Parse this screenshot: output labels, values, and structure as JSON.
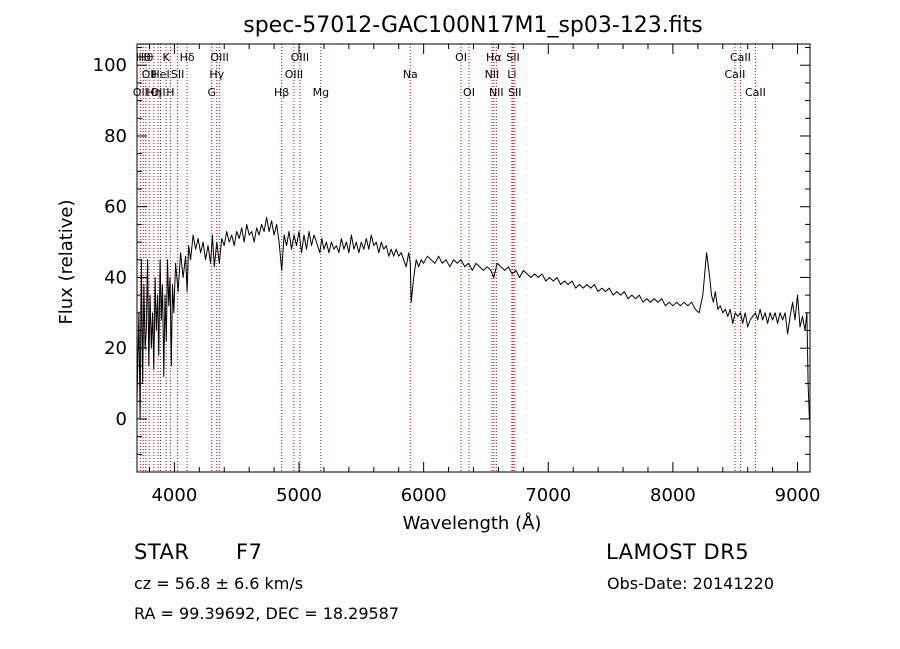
{
  "chart_data": {
    "type": "line",
    "title": "spec-57012-GAC100N17M1_sp03-123.fits",
    "xlabel": "Wavelength (Å)",
    "ylabel": "Flux (relative)",
    "xlim": [
      3700,
      9100
    ],
    "ylim": [
      -15,
      106
    ],
    "xticks": [
      4000,
      5000,
      6000,
      7000,
      8000,
      9000
    ],
    "xtick_labels": [
      "4000",
      "5000",
      "6000",
      "7000",
      "8000",
      "9000"
    ],
    "yticks": [
      0,
      20,
      40,
      60,
      80,
      100
    ],
    "ytick_labels": [
      "0",
      "20",
      "40",
      "60",
      "80",
      "100"
    ],
    "grid": false,
    "line_color": "#000000",
    "marker_color": "#c00000",
    "series": [
      {
        "x": [
          3700,
          3715,
          3725,
          3735,
          3745,
          3755,
          3765,
          3775,
          3785,
          3795,
          3805,
          3815,
          3825,
          3835,
          3845,
          3855,
          3865,
          3875,
          3885,
          3895,
          3905,
          3915,
          3925,
          3935,
          3945,
          3955,
          3965,
          3975,
          3985,
          3995,
          4010,
          4030,
          4050,
          4070,
          4090,
          4102,
          4115,
          4130,
          4150,
          4170,
          4190,
          4210,
          4230,
          4250,
          4270,
          4290,
          4305,
          4320,
          4340,
          4360,
          4380,
          4400,
          4420,
          4440,
          4460,
          4480,
          4500,
          4520,
          4540,
          4560,
          4580,
          4600,
          4620,
          4640,
          4660,
          4680,
          4700,
          4720,
          4740,
          4760,
          4780,
          4800,
          4820,
          4840,
          4861,
          4880,
          4900,
          4920,
          4940,
          4960,
          4980,
          5000,
          5020,
          5040,
          5060,
          5080,
          5100,
          5120,
          5140,
          5167,
          5183,
          5200,
          5220,
          5240,
          5260,
          5280,
          5300,
          5320,
          5340,
          5360,
          5380,
          5400,
          5420,
          5440,
          5460,
          5480,
          5500,
          5520,
          5540,
          5560,
          5580,
          5600,
          5620,
          5640,
          5660,
          5680,
          5700,
          5720,
          5740,
          5760,
          5780,
          5800,
          5820,
          5840,
          5860,
          5880,
          5893,
          5900,
          5920,
          5940,
          5960,
          5980,
          6000,
          6030,
          6060,
          6090,
          6120,
          6150,
          6180,
          6210,
          6240,
          6270,
          6300,
          6330,
          6360,
          6390,
          6420,
          6450,
          6480,
          6510,
          6540,
          6563,
          6590,
          6620,
          6650,
          6680,
          6710,
          6740,
          6770,
          6800,
          6830,
          6860,
          6890,
          6920,
          6950,
          6980,
          7010,
          7040,
          7070,
          7100,
          7130,
          7160,
          7190,
          7220,
          7250,
          7280,
          7310,
          7340,
          7370,
          7400,
          7430,
          7460,
          7490,
          7520,
          7550,
          7580,
          7610,
          7640,
          7670,
          7700,
          7730,
          7760,
          7790,
          7820,
          7850,
          7880,
          7910,
          7940,
          7970,
          8000,
          8030,
          8060,
          8090,
          8120,
          8150,
          8180,
          8210,
          8240,
          8270,
          8295,
          8310,
          8325,
          8340,
          8360,
          8380,
          8400,
          8420,
          8440,
          8460,
          8480,
          8500,
          8520,
          8542,
          8560,
          8580,
          8600,
          8620,
          8640,
          8662,
          8680,
          8700,
          8720,
          8740,
          8760,
          8780,
          8800,
          8820,
          8840,
          8860,
          8880,
          8900,
          8920,
          8940,
          8960,
          8980,
          9000,
          9020,
          9040,
          9060,
          9075,
          9085,
          9095
        ],
        "y": [
          5,
          30,
          0,
          45,
          10,
          38,
          20,
          25,
          45,
          15,
          35,
          20,
          30,
          14,
          40,
          25,
          35,
          18,
          45,
          28,
          38,
          12,
          35,
          22,
          45,
          32,
          40,
          15,
          38,
          30,
          44,
          36,
          47,
          40,
          46,
          36,
          49,
          45,
          52,
          48,
          51,
          47,
          50,
          45,
          49,
          44,
          52,
          43,
          50,
          44,
          51,
          49,
          53,
          50,
          52,
          49,
          53,
          51,
          54,
          50,
          55,
          52,
          53,
          50,
          54,
          52,
          55,
          53,
          57,
          53,
          56,
          52,
          55,
          50,
          42,
          52,
          49,
          53,
          48,
          52,
          49,
          53,
          47,
          52,
          48,
          53,
          49,
          52,
          50,
          47,
          51,
          48,
          50,
          47,
          50,
          48,
          49,
          47,
          51,
          48,
          50,
          47,
          52,
          48,
          50,
          47,
          50,
          48,
          51,
          48,
          52,
          49,
          50,
          47,
          50,
          48,
          49,
          46,
          48,
          46,
          48,
          46,
          47,
          45,
          43,
          47,
          44,
          33,
          40,
          45,
          43,
          45,
          44,
          46,
          45,
          44,
          46,
          44,
          45,
          43,
          45,
          44,
          45,
          43,
          44,
          42,
          44,
          43,
          42,
          43,
          42,
          40,
          44,
          43,
          42,
          43,
          41,
          42,
          40,
          42,
          41,
          40,
          41,
          40,
          41,
          39,
          40,
          39,
          40,
          38,
          39,
          38,
          39,
          37,
          38,
          37,
          38,
          37,
          38,
          36,
          37,
          36,
          37,
          35,
          36,
          35,
          36,
          34,
          35,
          34,
          35,
          33,
          34,
          33,
          34,
          33,
          34,
          32,
          33,
          32,
          33,
          32,
          33,
          32,
          33,
          31,
          30,
          35,
          47,
          40,
          35,
          33,
          36,
          31,
          32,
          30,
          31,
          29,
          31,
          27,
          30,
          29,
          30,
          27,
          30,
          26,
          28,
          29,
          30,
          28,
          31,
          28,
          30,
          27,
          30,
          28,
          30,
          27,
          30,
          28,
          30,
          24,
          29,
          33,
          28,
          35,
          26,
          29,
          25,
          30,
          10,
          0
        ]
      }
    ],
    "line_markers": [
      {
        "x": 3727,
        "labels": [
          "OII"
        ],
        "row": 3
      },
      {
        "x": 3750,
        "labels": [
          "Hθ"
        ],
        "row": 1
      },
      {
        "x": 3771,
        "labels": [
          "Hθ"
        ],
        "row": 1
      },
      {
        "x": 3798,
        "labels": [
          "OII"
        ],
        "row": 2
      },
      {
        "x": 3835,
        "labels": [
          "Hη"
        ],
        "row": 3
      },
      {
        "x": 3869,
        "labels": [
          "OII"
        ],
        "row": 3
      },
      {
        "x": 3889,
        "labels": [
          "HeI"
        ],
        "row": 2
      },
      {
        "x": 3934,
        "labels": [
          "K"
        ],
        "row": 1
      },
      {
        "x": 3968,
        "labels": [
          "H"
        ],
        "row": 3
      },
      {
        "x": 4026,
        "labels": [
          "SII"
        ],
        "row": 2
      },
      {
        "x": 4102,
        "labels": [
          "Hδ"
        ],
        "row": 1
      },
      {
        "x": 4300,
        "labels": [
          "G"
        ],
        "row": 3
      },
      {
        "x": 4340,
        "labels": [
          "Hγ"
        ],
        "row": 2
      },
      {
        "x": 4363,
        "labels": [
          "OIII"
        ],
        "row": 1
      },
      {
        "x": 4861,
        "labels": [
          "Hβ"
        ],
        "row": 3
      },
      {
        "x": 4959,
        "labels": [
          "OIII"
        ],
        "row": 2
      },
      {
        "x": 5007,
        "labels": [
          "OIII"
        ],
        "row": 1
      },
      {
        "x": 5175,
        "labels": [
          "Mg"
        ],
        "row": 3
      },
      {
        "x": 5893,
        "labels": [
          "Na"
        ],
        "row": 2
      },
      {
        "x": 6300,
        "labels": [
          "OI"
        ],
        "row": 1
      },
      {
        "x": 6364,
        "labels": [
          "OI"
        ],
        "row": 3
      },
      {
        "x": 6548,
        "labels": [
          "NII"
        ],
        "row": 2
      },
      {
        "x": 6563,
        "labels": [
          "Hα"
        ],
        "row": 1
      },
      {
        "x": 6583,
        "labels": [
          "NII"
        ],
        "row": 3
      },
      {
        "x": 6708,
        "labels": [
          "Li"
        ],
        "row": 2
      },
      {
        "x": 6717,
        "labels": [
          "SII"
        ],
        "row": 1
      },
      {
        "x": 6731,
        "labels": [
          "SII"
        ],
        "row": 3
      },
      {
        "x": 8498,
        "labels": [
          "CaII"
        ],
        "row": 2
      },
      {
        "x": 8542,
        "labels": [
          "CaII"
        ],
        "row": 1
      },
      {
        "x": 8662,
        "labels": [
          "CaII"
        ],
        "row": 3
      }
    ]
  },
  "info": {
    "object_class": "STAR",
    "subclass": "F7",
    "survey": "LAMOST DR5",
    "velocity": "cz = 56.8 ± 6.6 km/s",
    "obs_date": "Obs-Date: 20141220",
    "coords": "RA =  99.39692, DEC =  18.29587"
  }
}
